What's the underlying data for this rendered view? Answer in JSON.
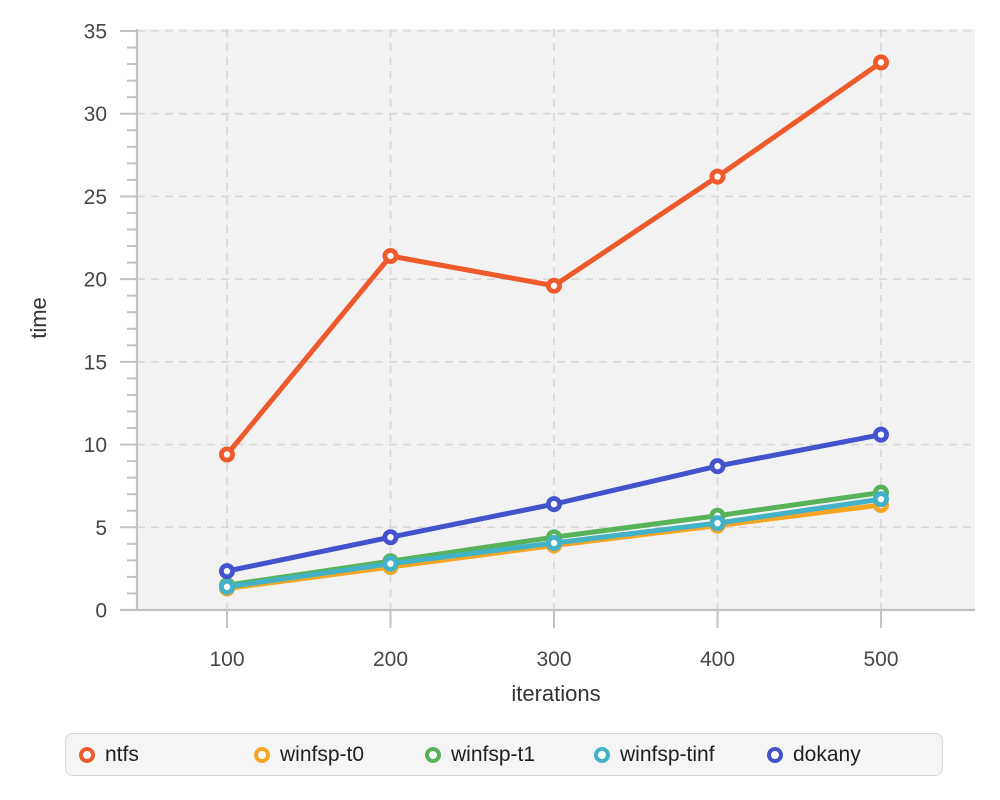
{
  "chart_data": {
    "type": "line",
    "title": "",
    "xlabel": "iterations",
    "ylabel": "time",
    "x": [
      100,
      200,
      300,
      400,
      500
    ],
    "xticks": [
      100,
      200,
      300,
      400,
      500
    ],
    "yticks": [
      0,
      5,
      10,
      15,
      20,
      25,
      30,
      35
    ],
    "ylim": [
      0,
      35
    ],
    "xlim_padding": "~55 units each side",
    "grid": "dashed",
    "minor_ticks_y": "every 1 unit",
    "legend_position": "bottom",
    "marker": "open-circle",
    "plot_background": "#f2f2f2",
    "gridline_color": "#d7d7d7",
    "axis_color": "#c2c2c2",
    "series": [
      {
        "name": "ntfs",
        "color": "#ee5a2b",
        "values": [
          9.4,
          21.4,
          19.6,
          26.2,
          33.1
        ]
      },
      {
        "name": "winfsp-t0",
        "color": "#f6a623",
        "values": [
          1.3,
          2.6,
          3.9,
          5.1,
          6.35
        ]
      },
      {
        "name": "winfsp-t1",
        "color": "#57b25a",
        "values": [
          1.5,
          2.95,
          4.4,
          5.7,
          7.1
        ]
      },
      {
        "name": "winfsp-tinf",
        "color": "#43b1c6",
        "values": [
          1.4,
          2.8,
          4.05,
          5.25,
          6.7
        ]
      },
      {
        "name": "dokany",
        "color": "#4453cb",
        "values": [
          2.35,
          4.4,
          6.4,
          8.7,
          10.6
        ]
      }
    ]
  },
  "legend": {
    "items": [
      "ntfs",
      "winfsp-t0",
      "winfsp-t1",
      "winfsp-tinf",
      "dokany"
    ]
  }
}
